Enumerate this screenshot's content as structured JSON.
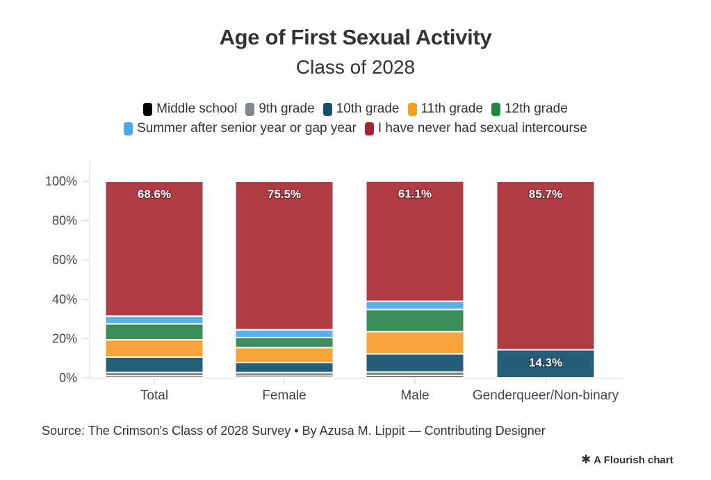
{
  "title": "Age of First Sexual Activity",
  "subtitle": "Class of 2028",
  "source": "Source: The Crimson's Class of 2028 Survey • By Azusa M. Lippit — Contributing Designer",
  "branding": {
    "icon": "flourish-asterisk-icon",
    "label": "A Flourish chart"
  },
  "chart_data": {
    "type": "bar",
    "stacked": true,
    "orientation": "vertical",
    "title": "Age of First Sexual Activity",
    "subtitle": "Class of 2028",
    "xlabel": "",
    "ylabel": "",
    "ylim": [
      0,
      100
    ],
    "y_ticks": [
      "0%",
      "20%",
      "40%",
      "60%",
      "80%",
      "100%"
    ],
    "y_tick_values": [
      0,
      20,
      40,
      60,
      80,
      100
    ],
    "grid": false,
    "legend_position": "top-center",
    "categories": [
      "Total",
      "Female",
      "Male",
      "Genderqueer/Non-binary"
    ],
    "series": [
      {
        "name": "Middle school",
        "color": "#000000",
        "values": [
          1.0,
          0.9,
          1.1,
          0
        ]
      },
      {
        "name": "9th grade",
        "color": "#86898b",
        "values": [
          1.8,
          1.8,
          1.9,
          0
        ]
      },
      {
        "name": "10th grade",
        "color": "#255e79",
        "values": [
          7.8,
          5.1,
          9.2,
          14.3
        ]
      },
      {
        "name": "11th grade",
        "color": "#f8a43a",
        "values": [
          8.8,
          7.6,
          11.3,
          0
        ]
      },
      {
        "name": "12th grade",
        "color": "#3a8e5a",
        "values": [
          8.1,
          5.1,
          11.3,
          0
        ]
      },
      {
        "name": "Summer after senior year or gap year",
        "color": "#5bb0e8",
        "values": [
          3.9,
          4.0,
          4.2,
          0
        ]
      },
      {
        "name": "I have never had sexual intercourse",
        "color": "#b03c45",
        "values": [
          68.6,
          75.5,
          61.1,
          85.7
        ]
      }
    ],
    "data_labels": [
      {
        "category": "Total",
        "series": "I have never had sexual intercourse",
        "text": "68.6%"
      },
      {
        "category": "Female",
        "series": "I have never had sexual intercourse",
        "text": "75.5%"
      },
      {
        "category": "Male",
        "series": "I have never had sexual intercourse",
        "text": "61.1%"
      },
      {
        "category": "Genderqueer/Non-binary",
        "series": "I have never had sexual intercourse",
        "text": "85.7%"
      },
      {
        "category": "Genderqueer/Non-binary",
        "series": "10th grade",
        "text": "14.3%"
      }
    ]
  },
  "legend": {
    "rows": [
      [
        {
          "label": "Middle school",
          "color": "#000000"
        },
        {
          "label": "9th grade",
          "color": "#86898b"
        },
        {
          "label": "10th grade",
          "color": "#14506b"
        },
        {
          "label": "11th grade",
          "color": "#f8a11e"
        },
        {
          "label": "12th grade",
          "color": "#218546"
        }
      ],
      [
        {
          "label": "Summer after senior year or gap year",
          "color": "#4aaae8"
        },
        {
          "label": "I have never had sexual intercourse",
          "color": "#a8232e"
        }
      ]
    ]
  }
}
